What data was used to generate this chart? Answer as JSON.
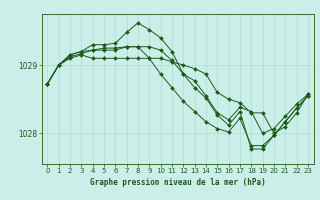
{
  "title": "Graphe pression niveau de la mer (hPa)",
  "bg_color": "#cceee8",
  "grid_color": "#aaddcc",
  "line_color": "#1a5c1a",
  "xlim": [
    -0.5,
    23.5
  ],
  "ylim": [
    1027.55,
    1029.75
  ],
  "yticks": [
    1028,
    1029
  ],
  "xticks": [
    0,
    1,
    2,
    3,
    4,
    5,
    6,
    7,
    8,
    9,
    10,
    11,
    12,
    13,
    14,
    15,
    16,
    17,
    18,
    19,
    20,
    21,
    22,
    23
  ],
  "series": [
    [
      1028.72,
      1029.0,
      1029.12,
      1029.17,
      1029.22,
      1029.25,
      1029.25,
      1029.27,
      1029.27,
      1029.1,
      1029.1,
      1029.05,
      1029.0,
      1028.95,
      1028.87,
      1028.6,
      1028.5,
      1028.45,
      1028.3,
      1028.3,
      1028.0,
      1028.1,
      1028.3,
      1028.57
    ],
    [
      1028.72,
      1029.0,
      1029.15,
      1029.2,
      1029.3,
      1029.3,
      1029.32,
      1029.48,
      1029.62,
      1029.52,
      1029.4,
      1029.2,
      1028.87,
      1028.77,
      1028.55,
      1028.3,
      1028.2,
      1028.38,
      1028.32,
      1028.0,
      1028.07,
      1028.25,
      1028.43,
      1028.57
    ],
    [
      1028.72,
      1029.0,
      1029.15,
      1029.2,
      1029.22,
      1029.22,
      1029.22,
      1029.27,
      1029.27,
      1029.27,
      1029.22,
      1029.07,
      1028.87,
      1028.67,
      1028.52,
      1028.27,
      1028.12,
      1028.32,
      1027.77,
      1027.77,
      1027.97,
      1028.17,
      1028.37,
      1028.55
    ],
    [
      1028.72,
      1029.0,
      1029.1,
      1029.15,
      1029.1,
      1029.1,
      1029.1,
      1029.1,
      1029.1,
      1029.1,
      1028.87,
      1028.67,
      1028.47,
      1028.32,
      1028.17,
      1028.07,
      1028.02,
      1028.22,
      1027.82,
      1027.82,
      1027.97,
      1028.17,
      1028.37,
      1028.55
    ]
  ]
}
